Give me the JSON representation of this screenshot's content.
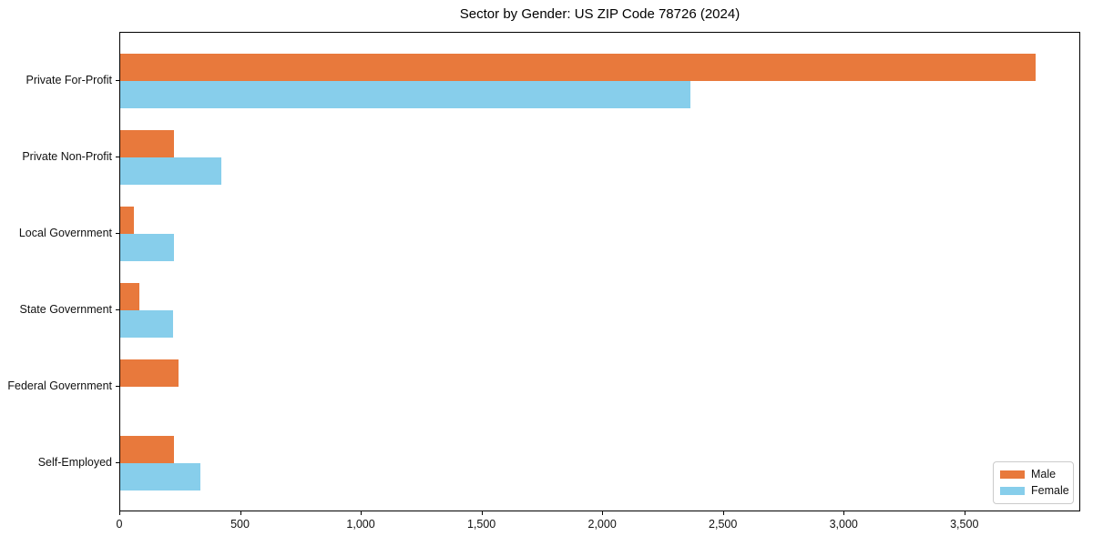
{
  "chart_data": {
    "type": "bar",
    "orientation": "horizontal",
    "title": "Sector by Gender: US ZIP Code 78726 (2024)",
    "categories": [
      "Private For-Profit",
      "Private Non-Profit",
      "Local Government",
      "State Government",
      "Federal Government",
      "Self-Employed"
    ],
    "series": [
      {
        "name": "Male",
        "color": "#e8793c",
        "values": [
          3790,
          222,
          57,
          79,
          240,
          222
        ]
      },
      {
        "name": "Female",
        "color": "#87ceeb",
        "values": [
          2360,
          418,
          222,
          219,
          0,
          332
        ]
      }
    ],
    "xlim": [
      0,
      3980
    ],
    "xtick_values": [
      0,
      500,
      1000,
      1500,
      2000,
      2500,
      3000,
      3500
    ],
    "xtick_labels": [
      "0",
      "500",
      "1,000",
      "1,500",
      "2,000",
      "2,500",
      "3,000",
      "3,500"
    ],
    "xlabel": "",
    "ylabel": "",
    "grid": false,
    "legend_position": "lower right",
    "frame_color": "#000000",
    "legend_border_color": "#cbcbcb"
  }
}
